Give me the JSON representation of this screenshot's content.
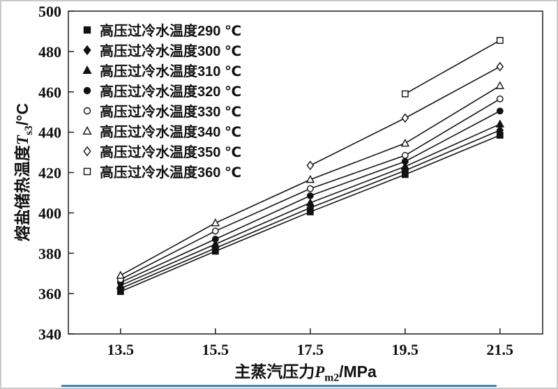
{
  "figure": {
    "background": "#ffffff",
    "border_color": "#c9c9c9",
    "accent_line_color": "#3d85c6",
    "line_color": "#141414",
    "frame_color": "#2b2b2b"
  },
  "axis": {
    "x": {
      "prefix": "主蒸汽压力",
      "var": "P",
      "sub": "m2",
      "suffix": "/MPa"
    },
    "y": {
      "prefix": "熔盐储热温度",
      "var": "T",
      "sub": "s3",
      "suffix": "/°C"
    }
  },
  "chart_data": {
    "type": "line",
    "title": "",
    "xlabel": "主蒸汽压力 Pm2/MPa",
    "ylabel": "熔盐储热温度 Ts3/°C",
    "xlim": [
      12.4,
      22.4
    ],
    "ylim": [
      340,
      500
    ],
    "x_ticks": [
      13.5,
      15.5,
      17.5,
      19.5,
      21.5
    ],
    "y_ticks": [
      340,
      360,
      380,
      400,
      420,
      440,
      460,
      480,
      500
    ],
    "grid": false,
    "legend_position": "top-left-inside",
    "series": [
      {
        "label": "高压过冷水温度290 ℃",
        "water_temp_c": 290,
        "marker": "square",
        "fill": "filled",
        "points": [
          [
            13.5,
            361.0
          ],
          [
            15.5,
            381.0
          ],
          [
            17.5,
            400.5
          ],
          [
            19.5,
            419.0
          ],
          [
            21.5,
            438.5
          ]
        ]
      },
      {
        "label": "高压过冷水温度300 ℃",
        "water_temp_c": 300,
        "marker": "diamond",
        "fill": "filled",
        "points": [
          [
            13.5,
            362.5
          ],
          [
            15.5,
            382.5
          ],
          [
            17.5,
            402.5
          ],
          [
            19.5,
            421.0
          ],
          [
            21.5,
            441.0
          ]
        ]
      },
      {
        "label": "高压过冷水温度310 ℃",
        "water_temp_c": 310,
        "marker": "triangle",
        "fill": "filled",
        "points": [
          [
            13.5,
            364.0
          ],
          [
            15.5,
            384.5
          ],
          [
            17.5,
            405.0
          ],
          [
            19.5,
            423.0
          ],
          [
            21.5,
            444.0
          ]
        ]
      },
      {
        "label": "高压过冷水温度320 ℃",
        "water_temp_c": 320,
        "marker": "circle",
        "fill": "filled",
        "points": [
          [
            13.5,
            365.5
          ],
          [
            15.5,
            387.0
          ],
          [
            17.5,
            408.5
          ],
          [
            19.5,
            425.5
          ],
          [
            21.5,
            450.5
          ]
        ]
      },
      {
        "label": "高压过冷水温度330 ℃",
        "water_temp_c": 330,
        "marker": "circle",
        "fill": "open",
        "points": [
          [
            13.5,
            367.0
          ],
          [
            15.5,
            391.0
          ],
          [
            17.5,
            412.0
          ],
          [
            19.5,
            428.5
          ],
          [
            21.5,
            456.5
          ]
        ]
      },
      {
        "label": "高压过冷水温度340 ℃",
        "water_temp_c": 340,
        "marker": "triangle",
        "fill": "open",
        "points": [
          [
            13.5,
            369.0
          ],
          [
            15.5,
            395.0
          ],
          [
            17.5,
            416.5
          ],
          [
            19.5,
            434.5
          ],
          [
            21.5,
            463.0
          ]
        ]
      },
      {
        "label": "高压过冷水温度350 ℃",
        "water_temp_c": 350,
        "marker": "diamond",
        "fill": "open",
        "points": [
          [
            17.5,
            423.5
          ],
          [
            19.5,
            447.0
          ],
          [
            21.5,
            472.5
          ]
        ]
      },
      {
        "label": "高压过冷水温度360 ℃",
        "water_temp_c": 360,
        "marker": "square",
        "fill": "open",
        "points": [
          [
            19.5,
            459.0
          ],
          [
            21.5,
            485.5
          ]
        ]
      }
    ]
  }
}
